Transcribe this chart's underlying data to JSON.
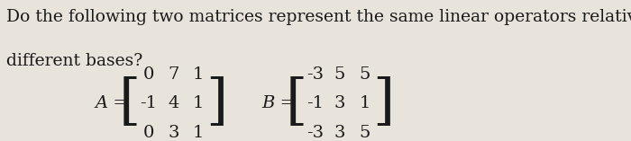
{
  "question_line1": "Do the following two matrices represent the same linear operators relative to",
  "question_line2": "different bases?",
  "A_label": "A =",
  "B_label": "B =",
  "A_rows": [
    [
      "0",
      "7",
      "1"
    ],
    [
      "-1",
      "4",
      "1"
    ],
    [
      "0",
      "3",
      "1"
    ]
  ],
  "B_rows": [
    [
      "-3",
      "5",
      "5"
    ],
    [
      "-1",
      "3",
      "1"
    ],
    [
      "-3",
      "3",
      "5"
    ]
  ],
  "bg_color": "#e8e4dc",
  "text_color": "#1a1a1a",
  "fontsize_question": 13.5,
  "fontsize_matrix": 14,
  "fontsize_label": 14
}
